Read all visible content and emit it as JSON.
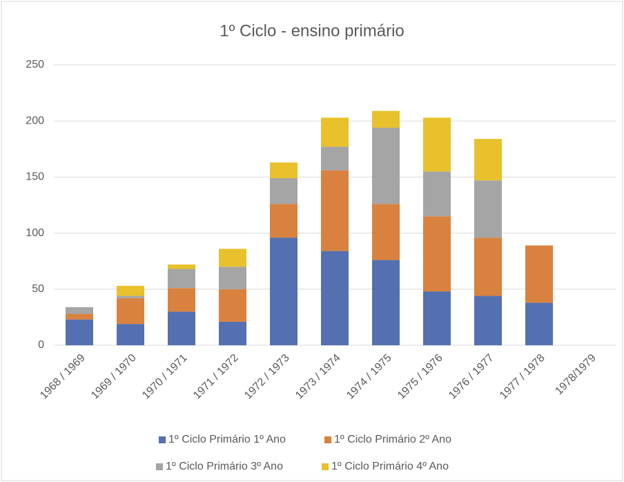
{
  "chart_data": {
    "type": "stacked_bar",
    "title": "1º Ciclo - ensino primário",
    "categories": [
      "1968 / 1969",
      "1969 / 1970",
      "1970 / 1971",
      "1971 / 1972",
      "1972 / 1973",
      "1973 / 1974",
      "1974 / 1975",
      "1975 / 1976",
      "1976 / 1977",
      "1977 / 1978",
      "1978/1979"
    ],
    "series": [
      {
        "name": "1º Ciclo Primário 1º Ano",
        "color": "#5470b0",
        "values": [
          23,
          19,
          30,
          21,
          96,
          84,
          76,
          48,
          44,
          38,
          0
        ]
      },
      {
        "name": "1º Ciclo Primário 2º Ano",
        "color": "#d9823f",
        "values": [
          5,
          23,
          21,
          29,
          30,
          72,
          50,
          67,
          52,
          51,
          0
        ]
      },
      {
        "name": "1º Ciclo Primário 3º Ano",
        "color": "#a5a5a5",
        "values": [
          6,
          2,
          17,
          20,
          23,
          21,
          68,
          40,
          51,
          0,
          0
        ]
      },
      {
        "name": "1º Ciclo Primário 4º Ano",
        "color": "#e8c12c",
        "values": [
          0,
          9,
          4,
          16,
          14,
          26,
          15,
          48,
          37,
          0,
          0
        ]
      }
    ],
    "ylim": [
      0,
      250
    ],
    "yticks": [
      0,
      50,
      100,
      150,
      200,
      250
    ],
    "grid": true,
    "legend": "bottom"
  }
}
